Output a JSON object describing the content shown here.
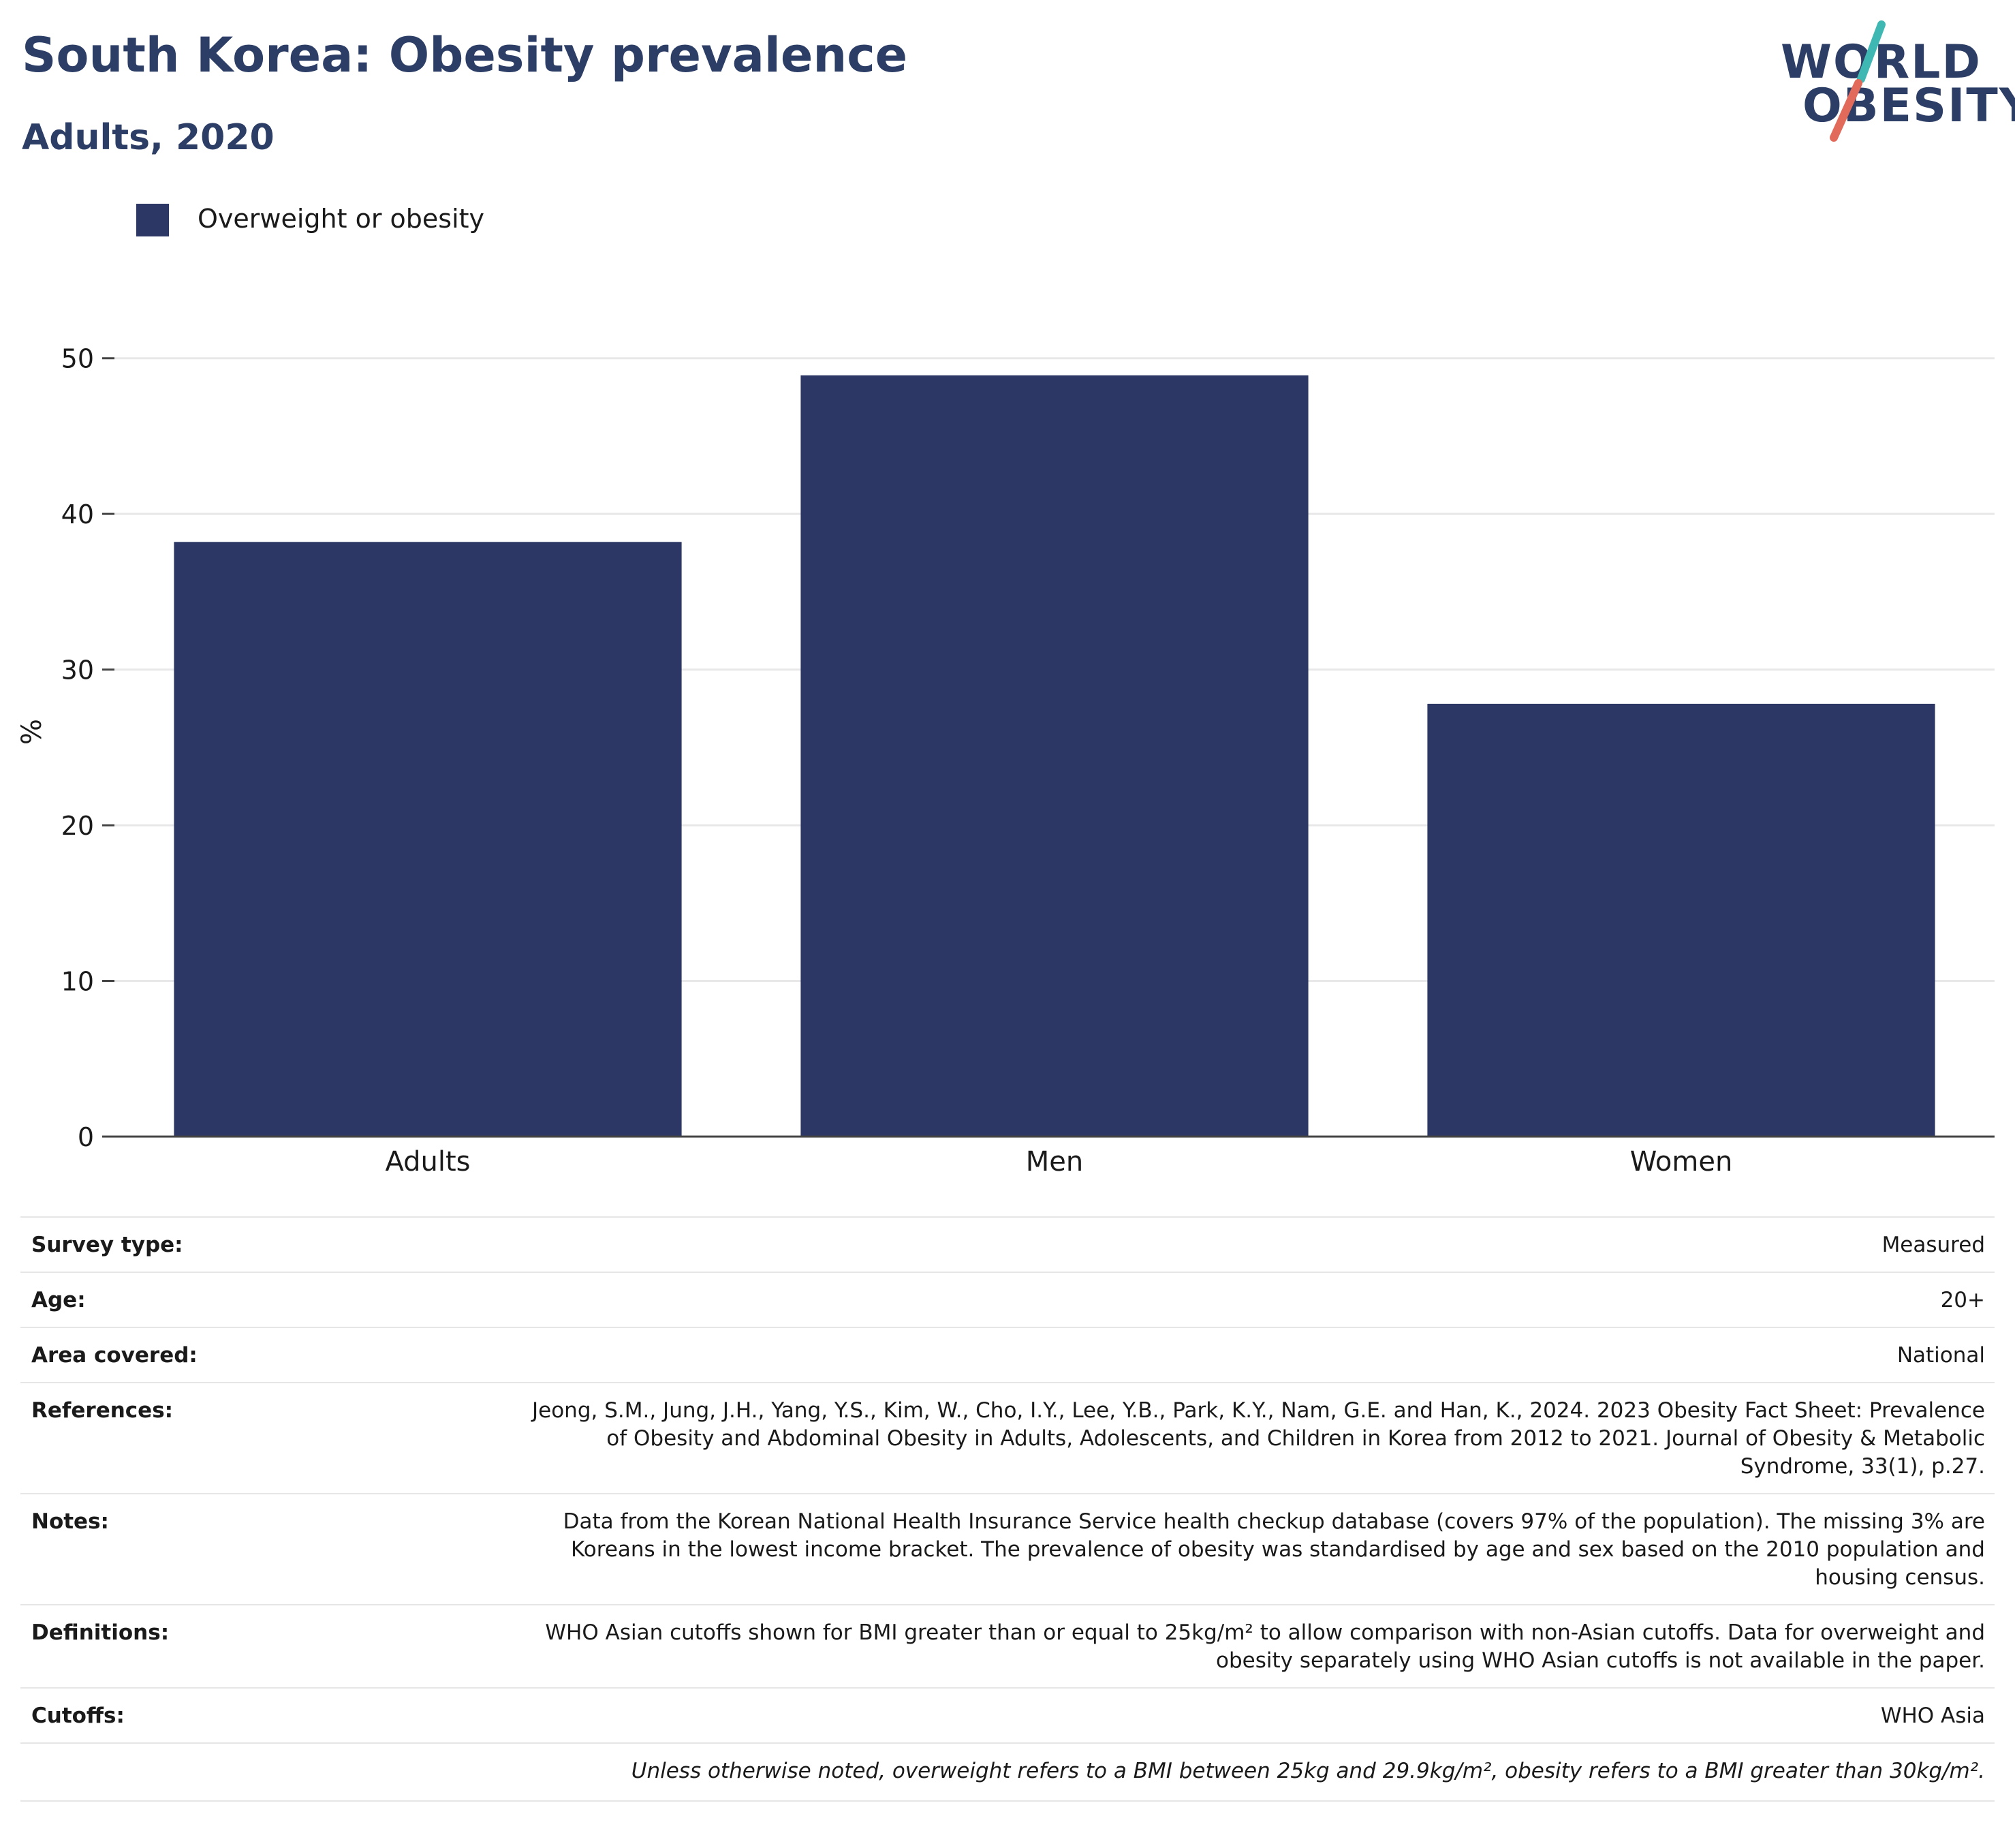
{
  "header": {
    "title": "South Korea: Obesity prevalence",
    "subtitle": "Adults, 2020"
  },
  "logo": {
    "line1": "WORLD",
    "line2": "OBESITY",
    "accent_teal": "#3fb8b3",
    "accent_coral": "#e26a5a"
  },
  "colors": {
    "bar": "#2c3766",
    "title": "#2c3e66",
    "grid": "#e8e8e8"
  },
  "chart_data": {
    "type": "bar",
    "title": "South Korea: Obesity prevalence",
    "subtitle": "Adults, 2020",
    "categories": [
      "Adults",
      "Men",
      "Women"
    ],
    "series": [
      {
        "name": "Overweight or obesity",
        "values": [
          38.2,
          48.9,
          27.8
        ]
      }
    ],
    "xlabel": "",
    "ylabel": "%",
    "ylim": [
      0,
      52
    ],
    "yticks": [
      0,
      10,
      20,
      30,
      40,
      50
    ],
    "grid": true,
    "legend_position": "top-left"
  },
  "meta": {
    "rows": [
      {
        "label": "Survey type:",
        "value": "Measured"
      },
      {
        "label": "Age:",
        "value": "20+"
      },
      {
        "label": "Area covered:",
        "value": "National"
      },
      {
        "label": "References:",
        "value": "Jeong, S.M., Jung, J.H., Yang, Y.S., Kim, W., Cho, I.Y., Lee, Y.B., Park, K.Y., Nam, G.E. and Han, K., 2024. 2023 Obesity Fact Sheet: Prevalence of Obesity and Abdominal Obesity in Adults, Adolescents, and Children in Korea from 2012 to 2021. Journal of Obesity & Metabolic Syndrome, 33(1), p.27."
      },
      {
        "label": "Notes:",
        "value": "Data from the Korean National Health Insurance Service health checkup database (covers 97% of the population). The missing 3% are Koreans in the lowest income bracket. The prevalence of obesity was standardised by age and sex based on the 2010 population and housing census."
      },
      {
        "label": "Definitions:",
        "value": "WHO Asian cutoffs shown for BMI greater than or equal to 25kg/m² to allow comparison with non-Asian cutoffs. Data for overweight and obesity separately using WHO Asian cutoffs is not available in the paper."
      },
      {
        "label": "Cutoffs:",
        "value": "WHO Asia"
      }
    ],
    "footnote": "Unless otherwise noted, overweight refers to a BMI between 25kg and 29.9kg/m², obesity refers to a BMI greater than 30kg/m²."
  }
}
